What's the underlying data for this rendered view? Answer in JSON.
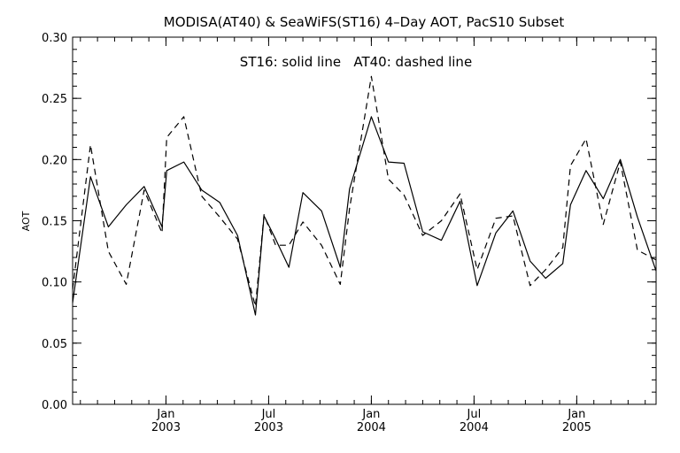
{
  "chart_data": {
    "type": "line",
    "title": "MODISA(AT40) & SeaWiFS(ST16) 4–Day AOT, PacS10 Subset",
    "annotation": "ST16: solid line   AT40: dashed line",
    "ylabel": "AOT",
    "xlabel": "",
    "ylim": [
      0,
      0.3
    ],
    "xlim": [
      0,
      37.5
    ],
    "y_ticks": [
      0.0,
      0.05,
      0.1,
      0.15,
      0.2,
      0.25,
      0.3
    ],
    "y_tick_labels": [
      "0.00",
      "0.05",
      "0.10",
      "0.15",
      "0.20",
      "0.25",
      "0.30"
    ],
    "x_ticks": [
      {
        "x": 6,
        "month": "Jan",
        "year": "2003"
      },
      {
        "x": 12.6,
        "month": "Jul",
        "year": "2003"
      },
      {
        "x": 19.2,
        "month": "Jan",
        "year": "2004"
      },
      {
        "x": 25.8,
        "month": "Jul",
        "year": "2004"
      },
      {
        "x": 32.4,
        "month": "Jan",
        "year": "2005"
      }
    ],
    "grid": false,
    "x": [
      0,
      1.15,
      2.3,
      3.45,
      4.6,
      5.75,
      6.05,
      7.15,
      8.3,
      9.45,
      10.6,
      11.75,
      12.3,
      13.05,
      13.9,
      14.8,
      16.0,
      17.2,
      17.8,
      19.2,
      20.3,
      21.3,
      22.5,
      23.7,
      24.9,
      26.0,
      27.2,
      28.3,
      29.4,
      30.4,
      31.5,
      32.0,
      33.0,
      34.1,
      35.2,
      36.3,
      37.5
    ],
    "series": [
      {
        "name": "ST16",
        "style": "solid",
        "values": [
          0.083,
          0.186,
          0.145,
          0.163,
          0.178,
          0.145,
          0.191,
          0.198,
          0.175,
          0.165,
          0.138,
          0.073,
          0.154,
          0.135,
          0.112,
          0.173,
          0.158,
          0.112,
          0.176,
          0.235,
          0.198,
          0.197,
          0.141,
          0.134,
          0.166,
          0.097,
          0.14,
          0.158,
          0.117,
          0.103,
          0.115,
          0.163,
          0.191,
          0.168,
          0.2,
          0.153,
          0.109
        ]
      },
      {
        "name": "AT40",
        "style": "dashed",
        "values": [
          0.094,
          0.212,
          0.125,
          0.098,
          0.175,
          0.14,
          0.218,
          0.235,
          0.17,
          0.153,
          0.135,
          0.08,
          0.155,
          0.13,
          0.13,
          0.149,
          0.13,
          0.098,
          0.16,
          0.268,
          0.184,
          0.171,
          0.138,
          0.15,
          0.172,
          0.11,
          0.152,
          0.154,
          0.097,
          0.11,
          0.128,
          0.195,
          0.217,
          0.147,
          0.198,
          0.126,
          0.118
        ]
      }
    ],
    "colors": {
      "line": "#000000",
      "background": "#ffffff"
    }
  }
}
